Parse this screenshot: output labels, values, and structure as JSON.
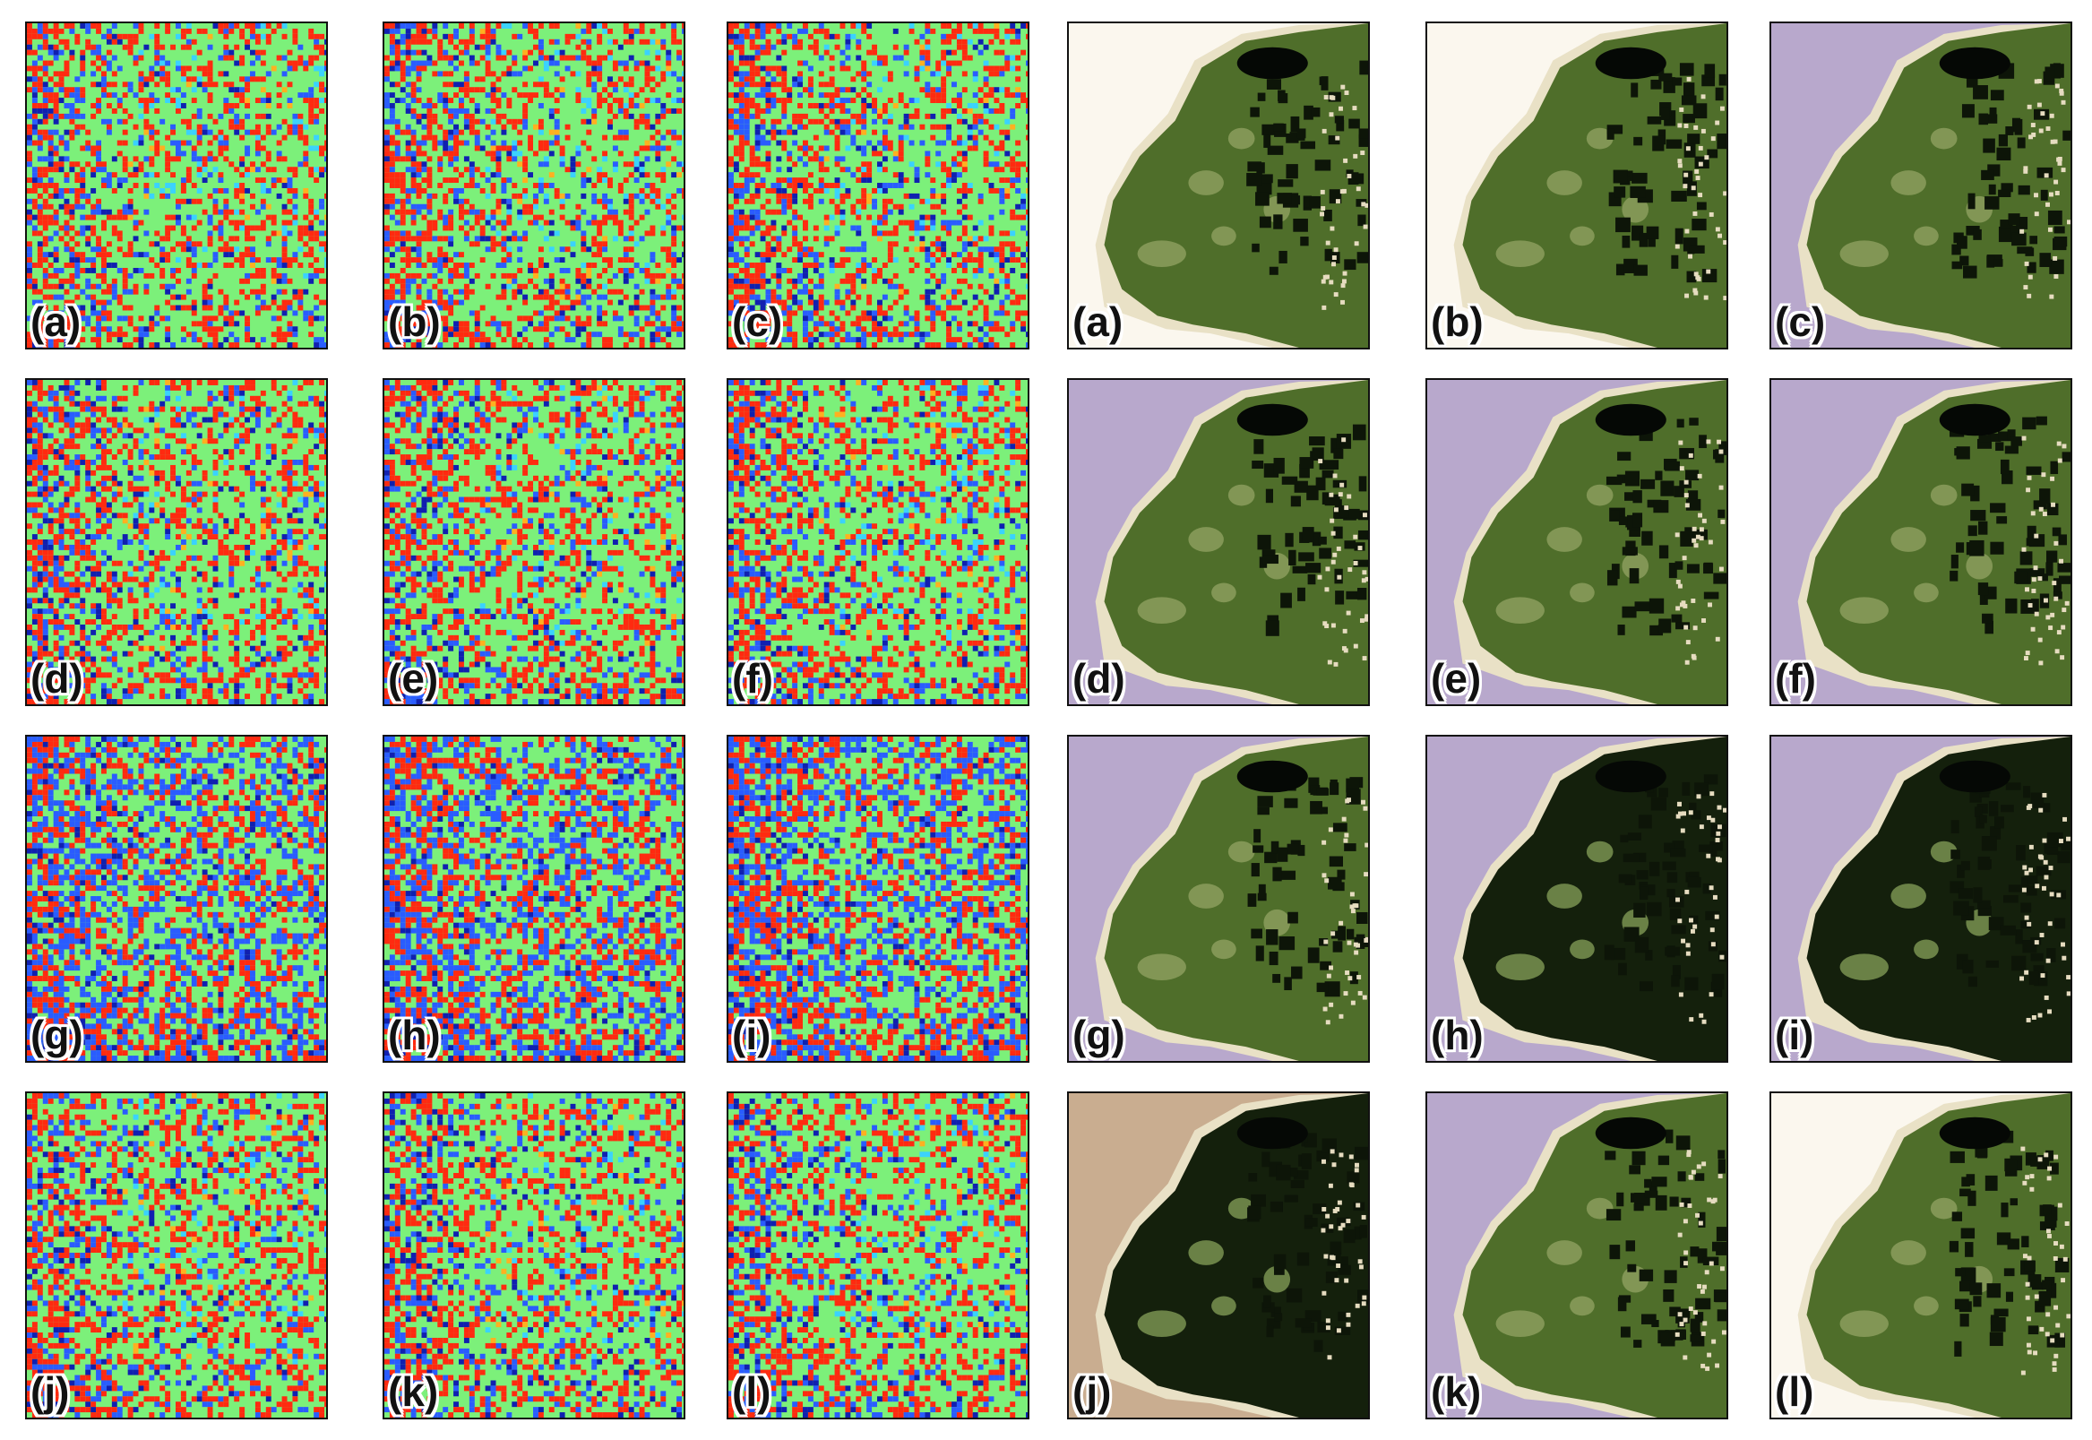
{
  "figure": {
    "left_group": {
      "kind": "classification-noise-map",
      "colors": [
        "#ff2a10",
        "#7cf07a",
        "#2a5cff",
        "#1020b0",
        "#3ad2ff",
        "#ffb020"
      ],
      "labels": [
        "(a)",
        "(b)",
        "(c)",
        "(d)",
        "(e)",
        "(f)",
        "(g)",
        "(h)",
        "(i)",
        "(j)",
        "(k)",
        "(l)"
      ]
    },
    "right_group": {
      "kind": "segmented-aerial-image",
      "colors": {
        "land": "#4f6e2a",
        "land_dark": "#14200c",
        "sand": "#e9e1c6",
        "water_lavender": "#b8a8cc",
        "water_white": "#fbf7ee",
        "water_brown": "#c9ad90"
      },
      "labels": [
        "(a)",
        "(b)",
        "(c)",
        "(d)",
        "(e)",
        "(f)",
        "(g)",
        "(h)",
        "(i)",
        "(j)",
        "(k)",
        "(l)"
      ],
      "panels": [
        {
          "land": "mid",
          "water": "white"
        },
        {
          "land": "mid",
          "water": "white"
        },
        {
          "land": "mid",
          "water": "lavender"
        },
        {
          "land": "mid",
          "water": "lavender"
        },
        {
          "land": "mid",
          "water": "lavender"
        },
        {
          "land": "mid",
          "water": "lavender"
        },
        {
          "land": "mid",
          "water": "lavender"
        },
        {
          "land": "dark",
          "water": "lavender"
        },
        {
          "land": "dark",
          "water": "lavender"
        },
        {
          "land": "dark",
          "water": "brown"
        },
        {
          "land": "mid",
          "water": "lavender"
        },
        {
          "land": "mid",
          "water": "white"
        }
      ]
    }
  }
}
